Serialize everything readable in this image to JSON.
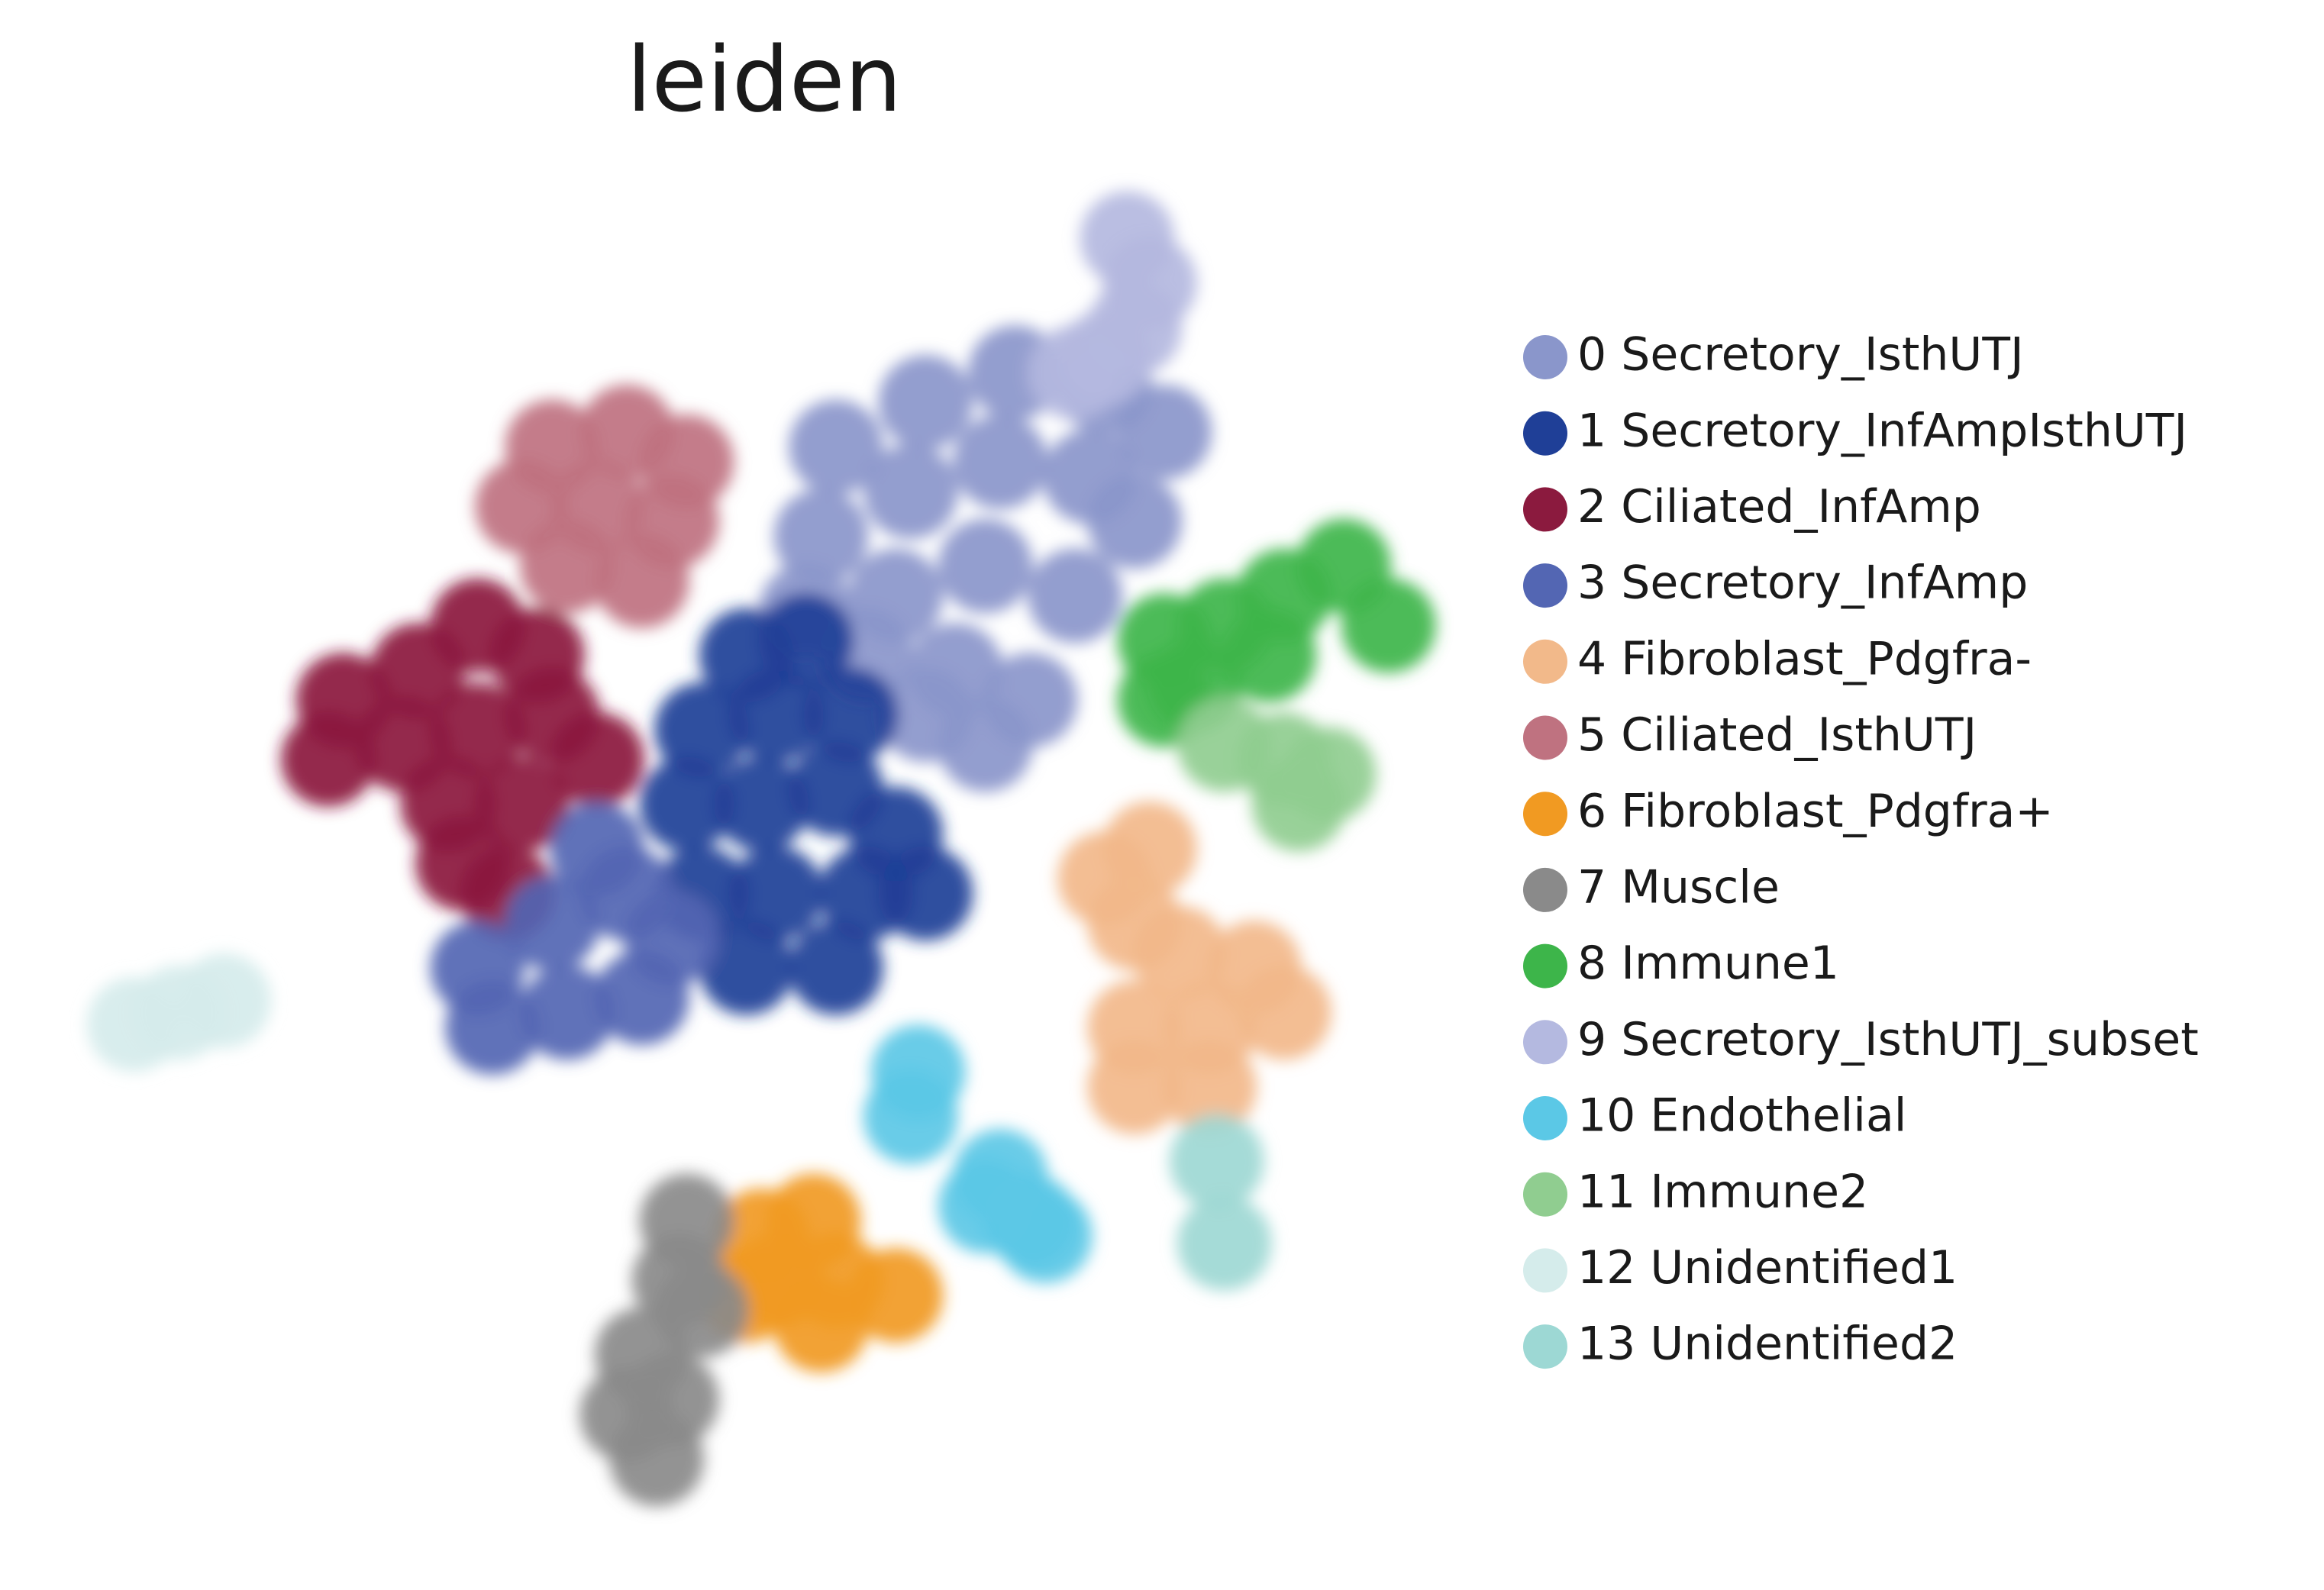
{
  "chart_data": {
    "type": "scatter",
    "title": "leiden",
    "xlim": [
      0,
      910
    ],
    "ylim": [
      0,
      880
    ],
    "series": [
      {
        "name": "0 Secretory_IsthUTJ",
        "color": "#8a96cb",
        "x": [
          500,
          560,
          620,
          680,
          720,
          490,
          550,
          610,
          670,
          700,
          480,
          540,
          600,
          660,
          520,
          580,
          630,
          600,
          560
        ],
        "y": [
          710,
          740,
          760,
          750,
          720,
          650,
          680,
          700,
          690,
          660,
          600,
          610,
          630,
          610,
          570,
          560,
          540,
          510,
          530
        ]
      },
      {
        "name": "1 Secretory_InfAmpIsthUTJ",
        "color": "#1f3f97",
        "x": [
          440,
          480,
          410,
          460,
          510,
          400,
          450,
          500,
          540,
          410,
          460,
          520,
          560,
          440,
          500
        ],
        "y": [
          570,
          580,
          520,
          530,
          530,
          470,
          470,
          480,
          450,
          410,
          410,
          410,
          410,
          360,
          360
        ]
      },
      {
        "name": "2 Ciliated_InfAmp",
        "color": "#8b1a3e",
        "x": [
          170,
          220,
          260,
          300,
          160,
          210,
          260,
          310,
          340,
          240,
          290,
          250,
          280
        ],
        "y": [
          540,
          560,
          590,
          570,
          500,
          510,
          520,
          530,
          500,
          470,
          470,
          430,
          410
        ]
      },
      {
        "name": "3 Secretory_InfAmp",
        "color": "#5366b3",
        "x": [
          260,
          310,
          360,
          270,
          320,
          370,
          390,
          340
        ],
        "y": [
          360,
          390,
          410,
          320,
          330,
          340,
          380,
          440
        ]
      },
      {
        "name": "4 Fibroblast_Pdgfra-",
        "color": "#f2b98a",
        "x": [
          680,
          700,
          730,
          780,
          700,
          750,
          800,
          700,
          750,
          710
        ],
        "y": [
          420,
          390,
          370,
          360,
          320,
          320,
          330,
          280,
          280,
          440
        ]
      },
      {
        "name": "5 Ciliated_IsthUTJ",
        "color": "#bf7280",
        "x": [
          310,
          360,
          400,
          290,
          340,
          390,
          320,
          370
        ],
        "y": [
          710,
          720,
          700,
          670,
          670,
          660,
          630,
          620
        ]
      },
      {
        "name": "6 Fibroblast_Pdgfra+",
        "color": "#f19a22",
        "x": [
          450,
          485,
          460,
          500,
          540,
          490,
          440
        ],
        "y": [
          180,
          190,
          150,
          150,
          140,
          120,
          140
        ]
      },
      {
        "name": "7 Muscle",
        "color": "#8a8a8a",
        "x": [
          400,
          395,
          410,
          370,
          360,
          390,
          380
        ],
        "y": [
          190,
          150,
          130,
          100,
          60,
          70,
          30
        ]
      },
      {
        "name": "8 Immune1",
        "color": "#3db54a",
        "x": [
          720,
          760,
          800,
          840,
          870,
          790,
          740,
          720
        ],
        "y": [
          580,
          590,
          610,
          630,
          590,
          570,
          550,
          540
        ]
      },
      {
        "name": "9 Secretory_IsthUTJ_subset",
        "color": "#b4b9e0",
        "x": [
          695,
          710,
          700,
          680,
          660
        ],
        "y": [
          850,
          820,
          790,
          770,
          760
        ]
      },
      {
        "name": "10 Endothelial",
        "color": "#5bc8e6",
        "x": [
          555,
          550,
          610,
          630,
          600,
          640
        ],
        "y": [
          290,
          260,
          220,
          190,
          200,
          180
        ]
      },
      {
        "name": "11 Immune2",
        "color": "#90cd90",
        "x": [
          760,
          800,
          830,
          810
        ],
        "y": [
          510,
          500,
          490,
          470
        ]
      },
      {
        "name": "12 Unidentified1",
        "color": "#d5eceb",
        "x": [
          30,
          60,
          90
        ],
        "y": [
          322,
          330,
          338
        ]
      },
      {
        "name": "13 Unidentified2",
        "color": "#9dd8d4",
        "x": [
          755,
          760
        ],
        "y": [
          230,
          175
        ]
      }
    ]
  }
}
